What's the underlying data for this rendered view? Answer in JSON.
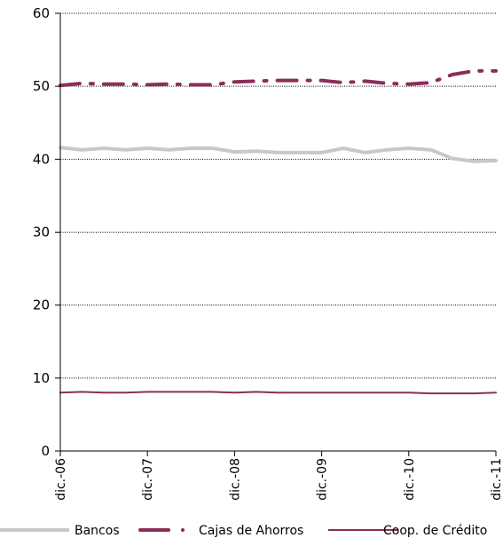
{
  "chart_data": {
    "type": "line",
    "ylim": [
      0,
      60
    ],
    "yticks": [
      "0",
      "10",
      "20",
      "30",
      "40",
      "50",
      "60"
    ],
    "xticks": [
      "dic.-06",
      "dic.-07",
      "dic.-08",
      "dic.-09",
      "dic.-10",
      "dic.-11"
    ],
    "grid": "horizontal-dotted",
    "legend": "bottom",
    "series": [
      {
        "name": "Bancos",
        "color": "#c8c8c8",
        "style": "solid-thick",
        "values": [
          41.6,
          41.3,
          41.5,
          41.3,
          41.5,
          41.3,
          41.5,
          41.5,
          41.0,
          41.1,
          40.9,
          40.9,
          40.9,
          41.5,
          40.9,
          41.3,
          41.5,
          41.3,
          40.1,
          39.7,
          39.8
        ]
      },
      {
        "name": "Cajas de Ahorros",
        "color": "#8b2e5a",
        "style": "dash-dot-thick",
        "values": [
          50.1,
          50.4,
          50.3,
          50.3,
          50.2,
          50.3,
          50.2,
          50.2,
          50.6,
          50.7,
          50.8,
          50.8,
          50.8,
          50.5,
          50.7,
          50.4,
          50.3,
          50.5,
          51.6,
          52.1,
          52.1
        ]
      },
      {
        "name": "Coop. de Crédito",
        "color": "#8b2e5a",
        "style": "solid-thin",
        "values": [
          8.0,
          8.1,
          8.0,
          8.0,
          8.1,
          8.1,
          8.1,
          8.1,
          8.0,
          8.1,
          8.0,
          8.0,
          8.0,
          8.0,
          8.0,
          8.0,
          8.0,
          7.9,
          7.9,
          7.9,
          8.0
        ]
      }
    ]
  }
}
